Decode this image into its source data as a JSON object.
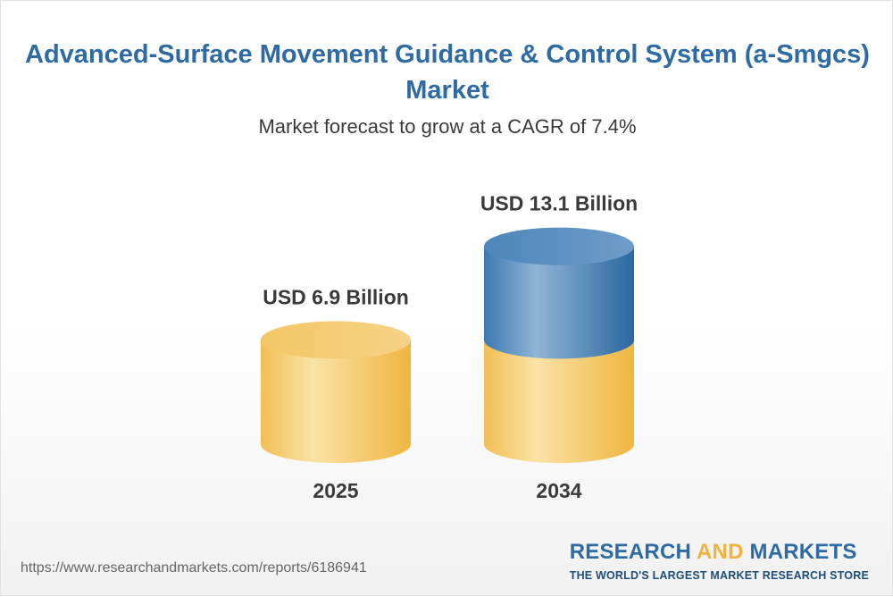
{
  "header": {
    "title": "Advanced-Surface Movement Guidance & Control System (a-Smgcs) Market",
    "subtitle": "Market forecast to grow at a CAGR of 7.4%"
  },
  "footer": {
    "source_url": "https://www.researchandmarkets.com/reports/6186941",
    "brand_word_1": "RESEARCH",
    "brand_word_2": "AND",
    "brand_word_3": "MARKETS",
    "brand_tagline": "THE WORLD'S LARGEST MARKET RESEARCH STORE"
  },
  "colors": {
    "title": "#2e6aa3",
    "bar_base": "#f2c35c",
    "bar_growth": "#2f6fa8",
    "text_dark": "#3a3a3a"
  },
  "chart_data": {
    "type": "bar",
    "style": "3d-cylinder",
    "categories": [
      "2025",
      "2034"
    ],
    "values": [
      6.9,
      13.1
    ],
    "unit": "USD Billion",
    "data_labels": [
      "USD 6.9 Billion",
      "USD 13.1 Billion"
    ],
    "base_value": 6.9,
    "cagr": "7.4%",
    "title": "Advanced-Surface Movement Guidance & Control System (a-Smgcs) Market",
    "subtitle": "Market forecast to grow at a CAGR of 7.4%",
    "xlabel": "",
    "ylabel": "",
    "grid": false
  }
}
